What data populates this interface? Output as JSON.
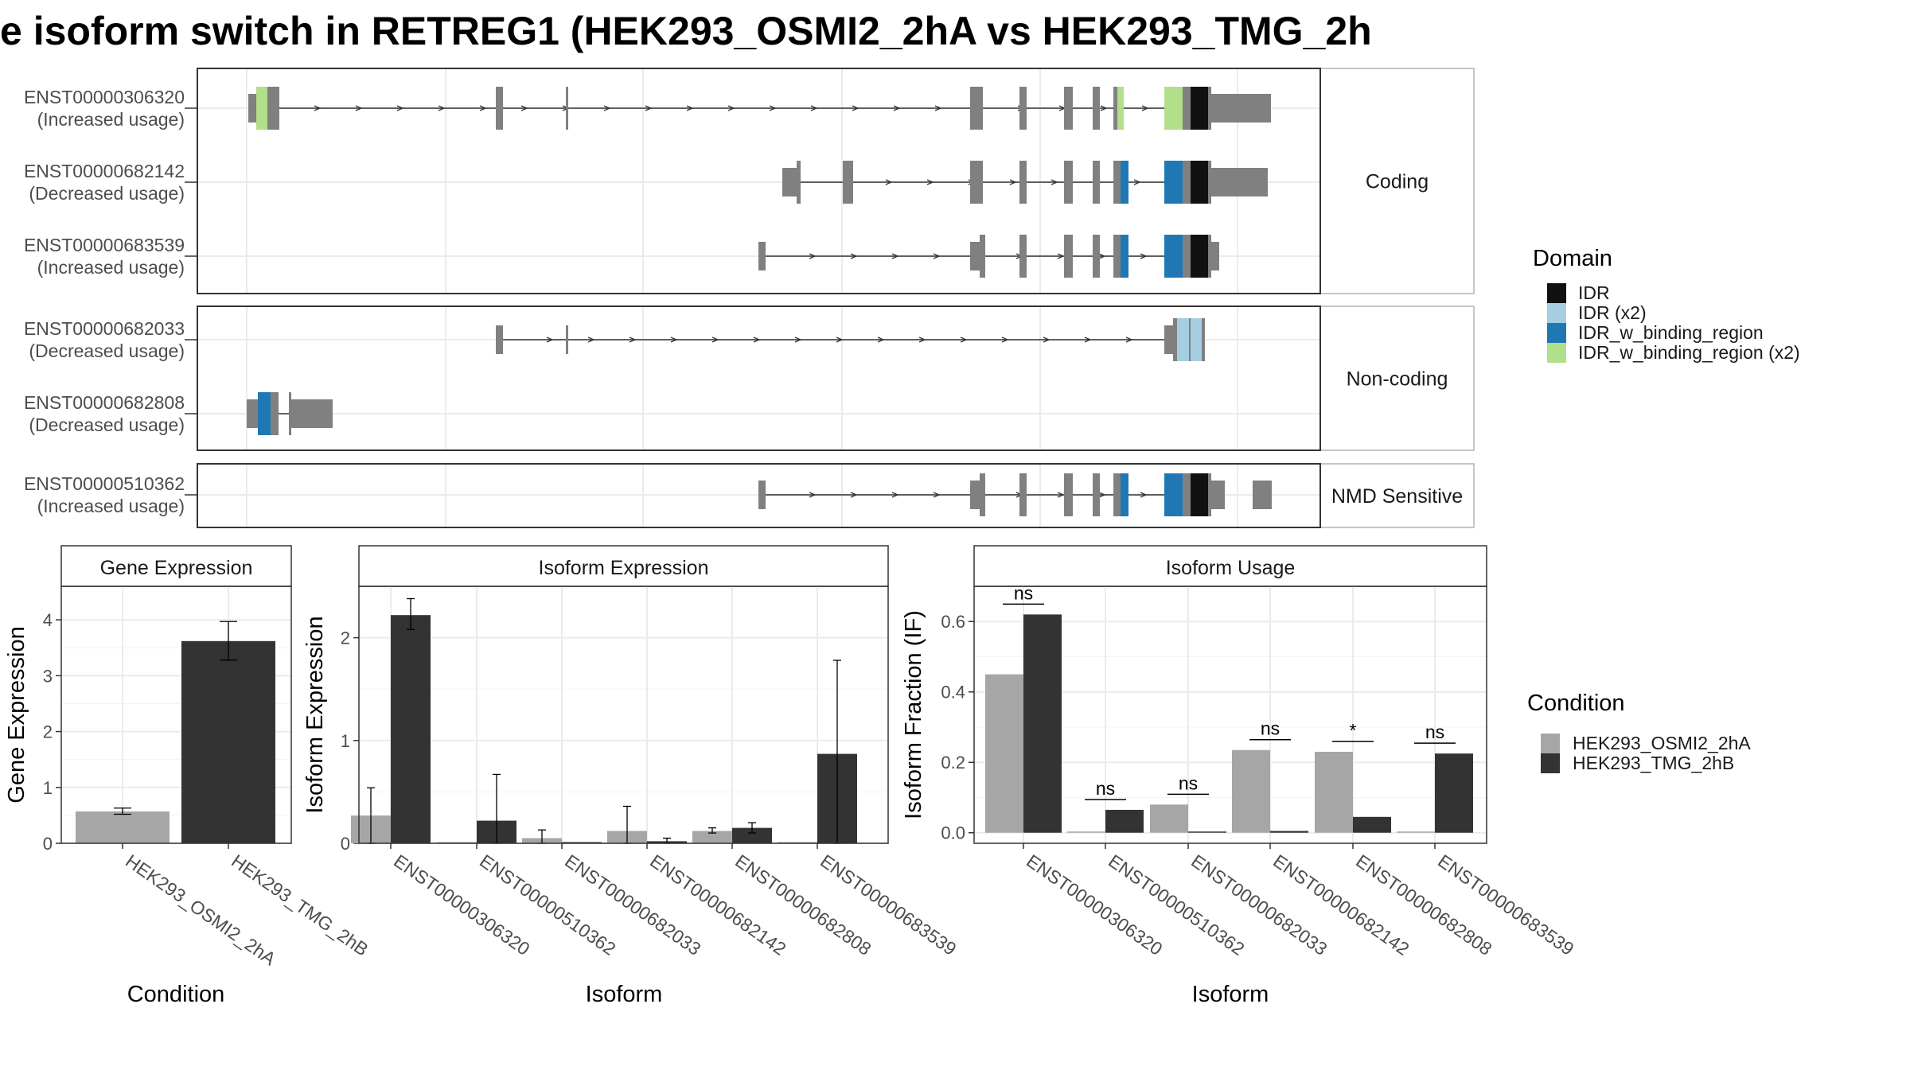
{
  "title": "e isoform switch in RETREG1 (HEK293_OSMI2_2hA vs HEK293_TMG_2h",
  "colors": {
    "exon": "#808080",
    "IDR": "#111111",
    "IDR_x2": "#a6cee3",
    "IDR_w_binding_region": "#1f78b4",
    "IDR_w_binding_region_x2": "#b2df8a",
    "cond_a": "#a6a6a6",
    "cond_b": "#333333",
    "panel_border": "#333333",
    "strip_fill": "#ffffff",
    "grid": "#ebebeb"
  },
  "structure": {
    "categories": [
      {
        "label": "Coding",
        "transcripts": [
          {
            "id": "ENST00000306320",
            "usage": "(Increased usage)"
          },
          {
            "id": "ENST00000682142",
            "usage": "(Decreased usage)"
          },
          {
            "id": "ENST00000683539",
            "usage": "(Increased usage)"
          }
        ]
      },
      {
        "label": "Non-coding",
        "transcripts": [
          {
            "id": "ENST00000682033",
            "usage": "(Decreased usage)"
          },
          {
            "id": "ENST00000682808",
            "usage": "(Decreased usage)"
          }
        ]
      },
      {
        "label": "NMD Sensitive",
        "transcripts": [
          {
            "id": "ENST00000510362",
            "usage": "(Increased usage)"
          }
        ]
      }
    ]
  },
  "domain_legend": {
    "title": "Domain",
    "items": [
      {
        "label": "IDR",
        "color": "#111111"
      },
      {
        "label": "IDR (x2)",
        "color": "#a6cee3"
      },
      {
        "label": "IDR_w_binding_region",
        "color": "#1f78b4"
      },
      {
        "label": "IDR_w_binding_region (x2)",
        "color": "#b2df8a"
      }
    ]
  },
  "condition_legend": {
    "title": "Condition",
    "items": [
      {
        "label": "HEK293_OSMI2_2hA",
        "color": "#a6a6a6"
      },
      {
        "label": "HEK293_TMG_2hB",
        "color": "#333333"
      }
    ]
  },
  "chart_data": [
    {
      "type": "bar",
      "title": "Gene Expression",
      "xlabel": "Condition",
      "ylabel": "Gene Expression",
      "ylim": [
        0,
        4.6
      ],
      "yticks": [
        "0",
        "1",
        "2",
        "3",
        "4"
      ],
      "categories": [
        "HEK293_OSMI2_2hA",
        "HEK293_TMG_2hB"
      ],
      "values": [
        0.57,
        3.62
      ],
      "error_low": [
        0.52,
        3.28
      ],
      "error_high": [
        0.63,
        3.97
      ],
      "grid": true
    },
    {
      "type": "bar",
      "title": "Isoform Expression",
      "xlabel": "Isoform",
      "ylabel": "Isoform Expression",
      "ylim": [
        0,
        2.5
      ],
      "yticks": [
        "0",
        "1",
        "2"
      ],
      "categories": [
        "ENST00000306320",
        "ENST00000510362",
        "ENST00000682033",
        "ENST00000682142",
        "ENST00000682808",
        "ENST00000683539"
      ],
      "series": [
        {
          "name": "HEK293_OSMI2_2hA",
          "values": [
            0.27,
            0.0,
            0.05,
            0.12,
            0.12,
            0.0
          ],
          "error_low": [
            0.0,
            0.0,
            0.0,
            0.0,
            0.1,
            0.0
          ],
          "error_high": [
            0.54,
            0.0,
            0.13,
            0.36,
            0.15,
            0.0
          ]
        },
        {
          "name": "HEK293_TMG_2hB",
          "values": [
            2.22,
            0.22,
            0.0,
            0.02,
            0.15,
            0.87
          ],
          "error_low": [
            2.08,
            0.0,
            0.0,
            0.0,
            0.1,
            0.0
          ],
          "error_high": [
            2.38,
            0.67,
            0.0,
            0.05,
            0.2,
            1.78
          ]
        }
      ],
      "grid": true
    },
    {
      "type": "bar",
      "title": "Isoform Usage",
      "xlabel": "Isoform",
      "ylabel": "Isoform Fraction (IF)",
      "ylim": [
        -0.03,
        0.7
      ],
      "yticks": [
        "0.0",
        "0.2",
        "0.4",
        "0.6"
      ],
      "categories": [
        "ENST00000306320",
        "ENST00000510362",
        "ENST00000682033",
        "ENST00000682142",
        "ENST00000682808",
        "ENST00000683539"
      ],
      "series": [
        {
          "name": "HEK293_OSMI2_2hA",
          "values": [
            0.45,
            0.0,
            0.08,
            0.235,
            0.23,
            0.0
          ]
        },
        {
          "name": "HEK293_TMG_2hB",
          "values": [
            0.62,
            0.065,
            0.0,
            0.005,
            0.045,
            0.225
          ]
        }
      ],
      "significance": [
        "ns",
        "ns",
        "ns",
        "ns",
        "*",
        "ns"
      ],
      "grid": true
    }
  ]
}
